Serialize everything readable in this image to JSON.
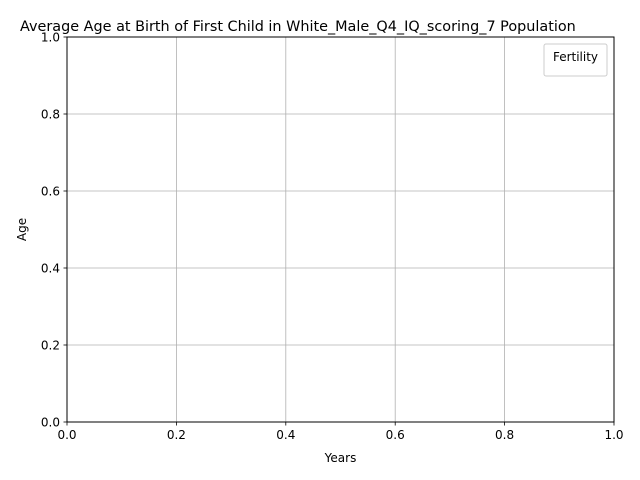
{
  "chart_data": {
    "type": "line",
    "title": "Average Age at Birth of First Child in White_Male_Q4_IQ_scoring_7 Population",
    "xlabel": "Years",
    "ylabel": "Age",
    "xlim": [
      0,
      1
    ],
    "ylim": [
      0,
      1
    ],
    "xticks": [
      "0.0",
      "0.2",
      "0.4",
      "0.6",
      "0.8",
      "1.0"
    ],
    "yticks": [
      "0.0",
      "0.2",
      "0.4",
      "0.6",
      "0.8",
      "1.0"
    ],
    "grid": true,
    "legend": {
      "title": "Fertility",
      "placement": "top-right",
      "entries": []
    },
    "series": []
  }
}
